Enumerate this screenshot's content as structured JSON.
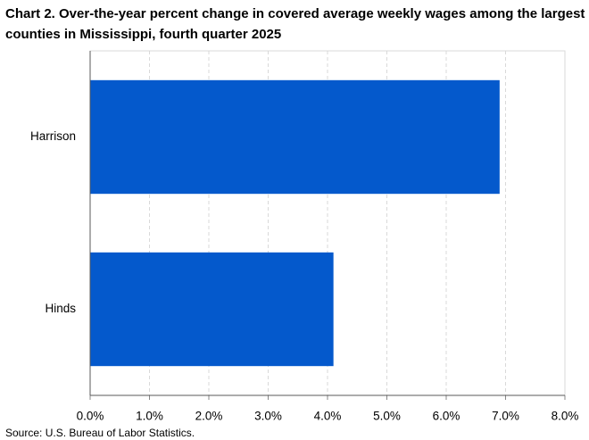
{
  "chart_data": {
    "type": "bar",
    "orientation": "horizontal",
    "title": "Chart 2. Over-the-year percent change in covered average weekly wages among the largest counties in Mississippi,  fourth quarter 2025",
    "source": "Source: U.S. Bureau of Labor Statistics.",
    "categories": [
      "Harrison",
      "Hinds"
    ],
    "values": [
      6.9,
      4.1
    ],
    "color": "#0459cc",
    "xlim": [
      0,
      8
    ],
    "xticks": [
      {
        "value": 0,
        "label": "0.0%"
      },
      {
        "value": 1,
        "label": "1.0%"
      },
      {
        "value": 2,
        "label": "2.0%"
      },
      {
        "value": 3,
        "label": "3.0%"
      },
      {
        "value": 4,
        "label": "4.0%"
      },
      {
        "value": 5,
        "label": "5.0%"
      },
      {
        "value": 6,
        "label": "6.0%"
      },
      {
        "value": 7,
        "label": "7.0%"
      },
      {
        "value": 8,
        "label": "8.0%"
      }
    ],
    "grid": true
  }
}
